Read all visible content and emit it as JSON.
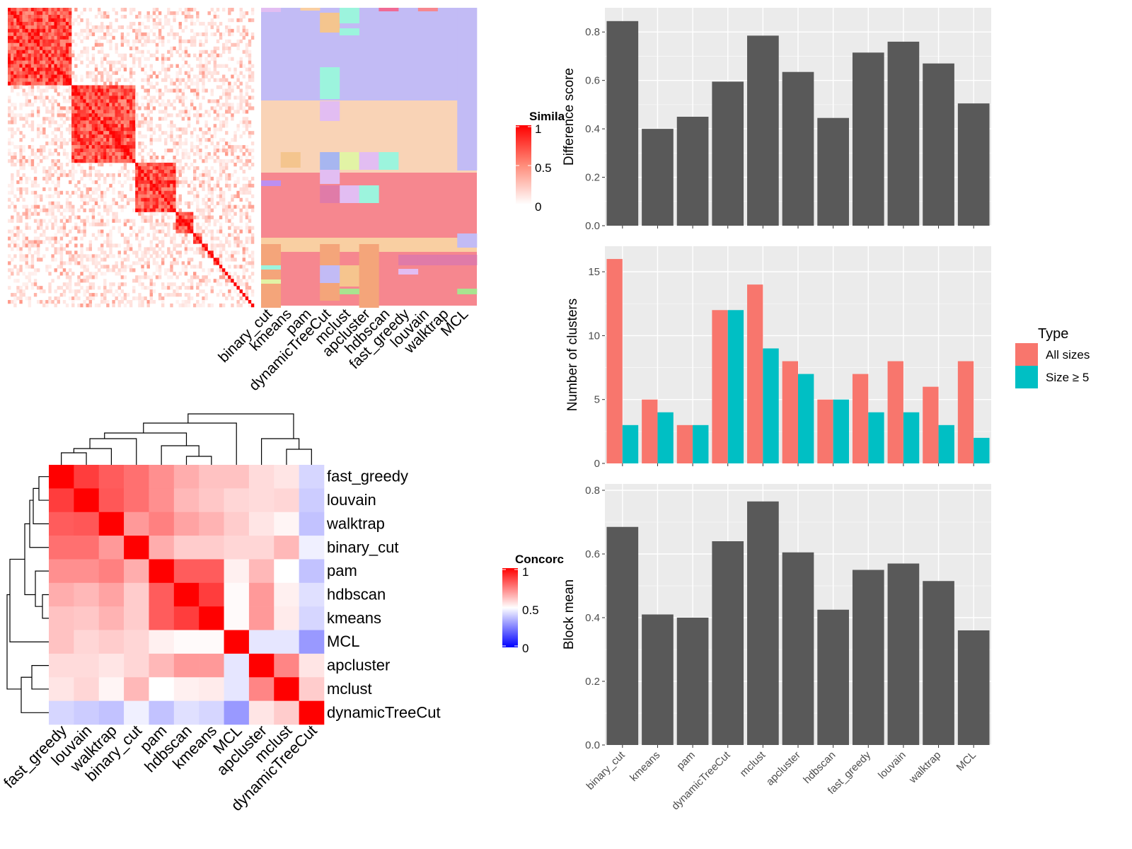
{
  "methods_order_bar": [
    "binary_cut",
    "kmeans",
    "pam",
    "dynamicTreeCut",
    "mclust",
    "apcluster",
    "hdbscan",
    "fast_greedy",
    "louvain",
    "walktrap",
    "MCL"
  ],
  "similarity_panel": {
    "legend_title": "Simila",
    "legend_ticks": [
      "1",
      "0.5",
      "0"
    ],
    "column_labels": [
      "binary_cut",
      "kmeans",
      "pam",
      "dynamicTreeCut",
      "mclust",
      "apcluster",
      "hdbscan",
      "fast_greedy",
      "louvain",
      "walktrap",
      "MCL"
    ]
  },
  "concordance_panel": {
    "legend_title": "Concorc",
    "legend_ticks": [
      "1",
      "0.5",
      "0"
    ],
    "row_labels": [
      "fast_greedy",
      "louvain",
      "walktrap",
      "binary_cut",
      "pam",
      "hdbscan",
      "kmeans",
      "MCL",
      "apcluster",
      "mclust",
      "dynamicTreeCut"
    ],
    "col_labels": [
      "fast_greedy",
      "louvain",
      "walktrap",
      "binary_cut",
      "pam",
      "hdbscan",
      "kmeans",
      "MCL",
      "apcluster",
      "mclust",
      "dynamicTreeCut"
    ]
  },
  "legend": {
    "title": "Type",
    "items": [
      {
        "label": "All sizes",
        "color": "#F8766D"
      },
      {
        "label": "Size ≥ 5",
        "color": "#00BFC4"
      }
    ]
  },
  "chart_data": [
    {
      "type": "heatmap",
      "title": "",
      "legend_title": "Simila",
      "color_scale": {
        "low": "#ffffff",
        "mid": "#ff8b79",
        "high": "#ff0000",
        "domain": [
          0,
          0.5,
          1
        ]
      },
      "note": "similarity matrix of terms; block-diagonal structure"
    },
    {
      "type": "heatmap",
      "title": "",
      "legend_title": "Concorc",
      "rows": [
        "fast_greedy",
        "louvain",
        "walktrap",
        "binary_cut",
        "pam",
        "hdbscan",
        "kmeans",
        "MCL",
        "apcluster",
        "mclust",
        "dynamicTreeCut"
      ],
      "cols": [
        "fast_greedy",
        "louvain",
        "walktrap",
        "binary_cut",
        "pam",
        "hdbscan",
        "kmeans",
        "MCL",
        "apcluster",
        "mclust",
        "dynamicTreeCut"
      ],
      "values": [
        [
          1.0,
          0.88,
          0.82,
          0.78,
          0.72,
          0.66,
          0.62,
          0.62,
          0.57,
          0.55,
          0.42
        ],
        [
          0.88,
          1.0,
          0.83,
          0.78,
          0.72,
          0.64,
          0.61,
          0.58,
          0.57,
          0.58,
          0.4
        ],
        [
          0.82,
          0.83,
          1.0,
          0.7,
          0.75,
          0.68,
          0.65,
          0.6,
          0.55,
          0.52,
          0.38
        ],
        [
          0.78,
          0.78,
          0.7,
          1.0,
          0.66,
          0.6,
          0.6,
          0.58,
          0.58,
          0.64,
          0.47
        ],
        [
          0.72,
          0.72,
          0.75,
          0.66,
          1.0,
          0.82,
          0.82,
          0.53,
          0.64,
          0.5,
          0.38
        ],
        [
          0.66,
          0.64,
          0.68,
          0.6,
          0.82,
          1.0,
          0.88,
          0.51,
          0.7,
          0.53,
          0.44
        ],
        [
          0.62,
          0.61,
          0.65,
          0.6,
          0.82,
          0.88,
          1.0,
          0.51,
          0.7,
          0.54,
          0.42
        ],
        [
          0.62,
          0.58,
          0.6,
          0.58,
          0.53,
          0.51,
          0.51,
          1.0,
          0.45,
          0.45,
          0.3
        ],
        [
          0.57,
          0.57,
          0.55,
          0.58,
          0.64,
          0.7,
          0.7,
          0.45,
          1.0,
          0.74,
          0.55
        ],
        [
          0.55,
          0.58,
          0.52,
          0.64,
          0.5,
          0.53,
          0.54,
          0.45,
          0.74,
          1.0,
          0.6
        ],
        [
          0.42,
          0.4,
          0.38,
          0.47,
          0.38,
          0.44,
          0.42,
          0.3,
          0.55,
          0.6,
          1.0
        ]
      ],
      "color_scale": {
        "low": "#0000ff",
        "mid": "#ffffff",
        "high": "#ff0000",
        "domain": [
          0,
          0.5,
          1
        ]
      }
    },
    {
      "type": "bar",
      "title": "",
      "xlabel": "",
      "ylabel": "Difference score",
      "categories": [
        "binary_cut",
        "kmeans",
        "pam",
        "dynamicTreeCut",
        "mclust",
        "apcluster",
        "hdbscan",
        "fast_greedy",
        "louvain",
        "walktrap",
        "MCL"
      ],
      "values": [
        0.845,
        0.4,
        0.45,
        0.595,
        0.785,
        0.635,
        0.445,
        0.715,
        0.76,
        0.67,
        0.505
      ],
      "ylim": [
        0,
        0.9
      ],
      "yticks": [
        0.0,
        0.2,
        0.4,
        0.6,
        0.8
      ],
      "ytick_labels": [
        "0.0",
        "0.2",
        "0.4",
        "0.6",
        "0.8"
      ],
      "grid": true
    },
    {
      "type": "bar",
      "title": "",
      "xlabel": "",
      "ylabel": "Number of clusters",
      "categories": [
        "binary_cut",
        "kmeans",
        "pam",
        "dynamicTreeCut",
        "mclust",
        "apcluster",
        "hdbscan",
        "fast_greedy",
        "louvain",
        "walktrap",
        "MCL"
      ],
      "series": [
        {
          "name": "All sizes",
          "values": [
            16,
            5,
            3,
            12,
            14,
            8,
            5,
            7,
            8,
            6,
            8
          ]
        },
        {
          "name": "Size ≥ 5",
          "values": [
            3,
            4,
            3,
            12,
            9,
            7,
            5,
            4,
            4,
            3,
            2
          ]
        }
      ],
      "ylim": [
        0,
        17
      ],
      "yticks": [
        0,
        5,
        10,
        15
      ],
      "ytick_labels": [
        "0",
        "5",
        "10",
        "15"
      ],
      "legend_placement": "right",
      "grid": true
    },
    {
      "type": "bar",
      "title": "",
      "xlabel": "",
      "ylabel": "Block mean",
      "categories": [
        "binary_cut",
        "kmeans",
        "pam",
        "dynamicTreeCut",
        "mclust",
        "apcluster",
        "hdbscan",
        "fast_greedy",
        "louvain",
        "walktrap",
        "MCL"
      ],
      "values": [
        0.685,
        0.41,
        0.4,
        0.64,
        0.765,
        0.605,
        0.425,
        0.55,
        0.57,
        0.515,
        0.36
      ],
      "ylim": [
        0,
        0.82
      ],
      "yticks": [
        0.0,
        0.2,
        0.4,
        0.6,
        0.8
      ],
      "ytick_labels": [
        "0.0",
        "0.2",
        "0.4",
        "0.6",
        "0.8"
      ],
      "grid": true
    }
  ]
}
